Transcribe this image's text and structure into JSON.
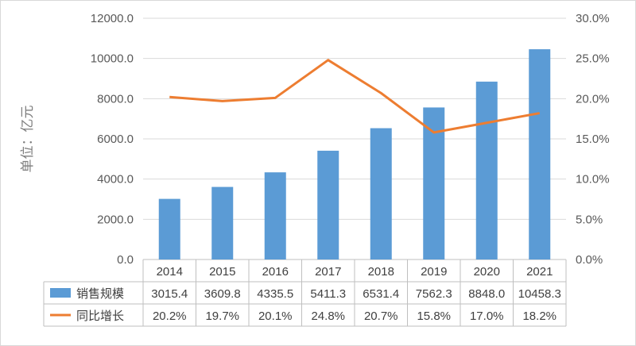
{
  "chart_data": {
    "type": "bar",
    "categories": [
      "2014",
      "2015",
      "2016",
      "2017",
      "2018",
      "2019",
      "2020",
      "2021"
    ],
    "series": [
      {
        "name": "销售规模",
        "type": "bar",
        "axis": "left",
        "color": "#5b9bd5",
        "values": [
          3015.4,
          3609.8,
          4335.5,
          5411.3,
          6531.4,
          7562.3,
          8848.0,
          10458.3
        ],
        "labels": [
          "3015.4",
          "3609.8",
          "4335.5",
          "5411.3",
          "6531.4",
          "7562.3",
          "8848.0",
          "10458.3"
        ]
      },
      {
        "name": "同比增长",
        "type": "line",
        "axis": "right",
        "color": "#ed7d31",
        "values": [
          20.2,
          19.7,
          20.1,
          24.8,
          20.7,
          15.8,
          17.0,
          18.2
        ],
        "labels": [
          "20.2%",
          "19.7%",
          "20.1%",
          "24.8%",
          "20.7%",
          "15.8%",
          "17.0%",
          "18.2%"
        ]
      }
    ],
    "ylabel": "单位：亿元",
    "ylim": [
      0,
      12000
    ],
    "y2lim": [
      0,
      30
    ],
    "y_ticks": [
      "0.0",
      "2000.0",
      "4000.0",
      "6000.0",
      "8000.0",
      "10000.0",
      "12000.0"
    ],
    "y2_ticks": [
      "0.0%",
      "5.0%",
      "10.0%",
      "15.0%",
      "20.0%",
      "25.0%",
      "30.0%"
    ],
    "grid": true,
    "legend": "data-table"
  }
}
